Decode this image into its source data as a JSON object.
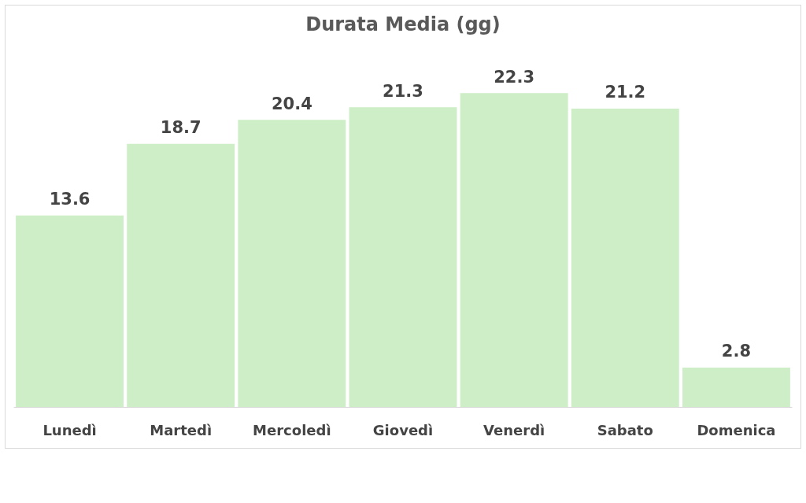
{
  "chart_data": {
    "type": "bar",
    "title": "Durata Media (gg)",
    "categories": [
      "Lunedì",
      "Martedì",
      "Mercoledì",
      "Giovedì",
      "Venerdì",
      "Sabato",
      "Domenica"
    ],
    "values": [
      13.6,
      18.7,
      20.4,
      21.3,
      22.3,
      21.2,
      2.8
    ],
    "color": "#cdeec6",
    "data_labels": true
  }
}
